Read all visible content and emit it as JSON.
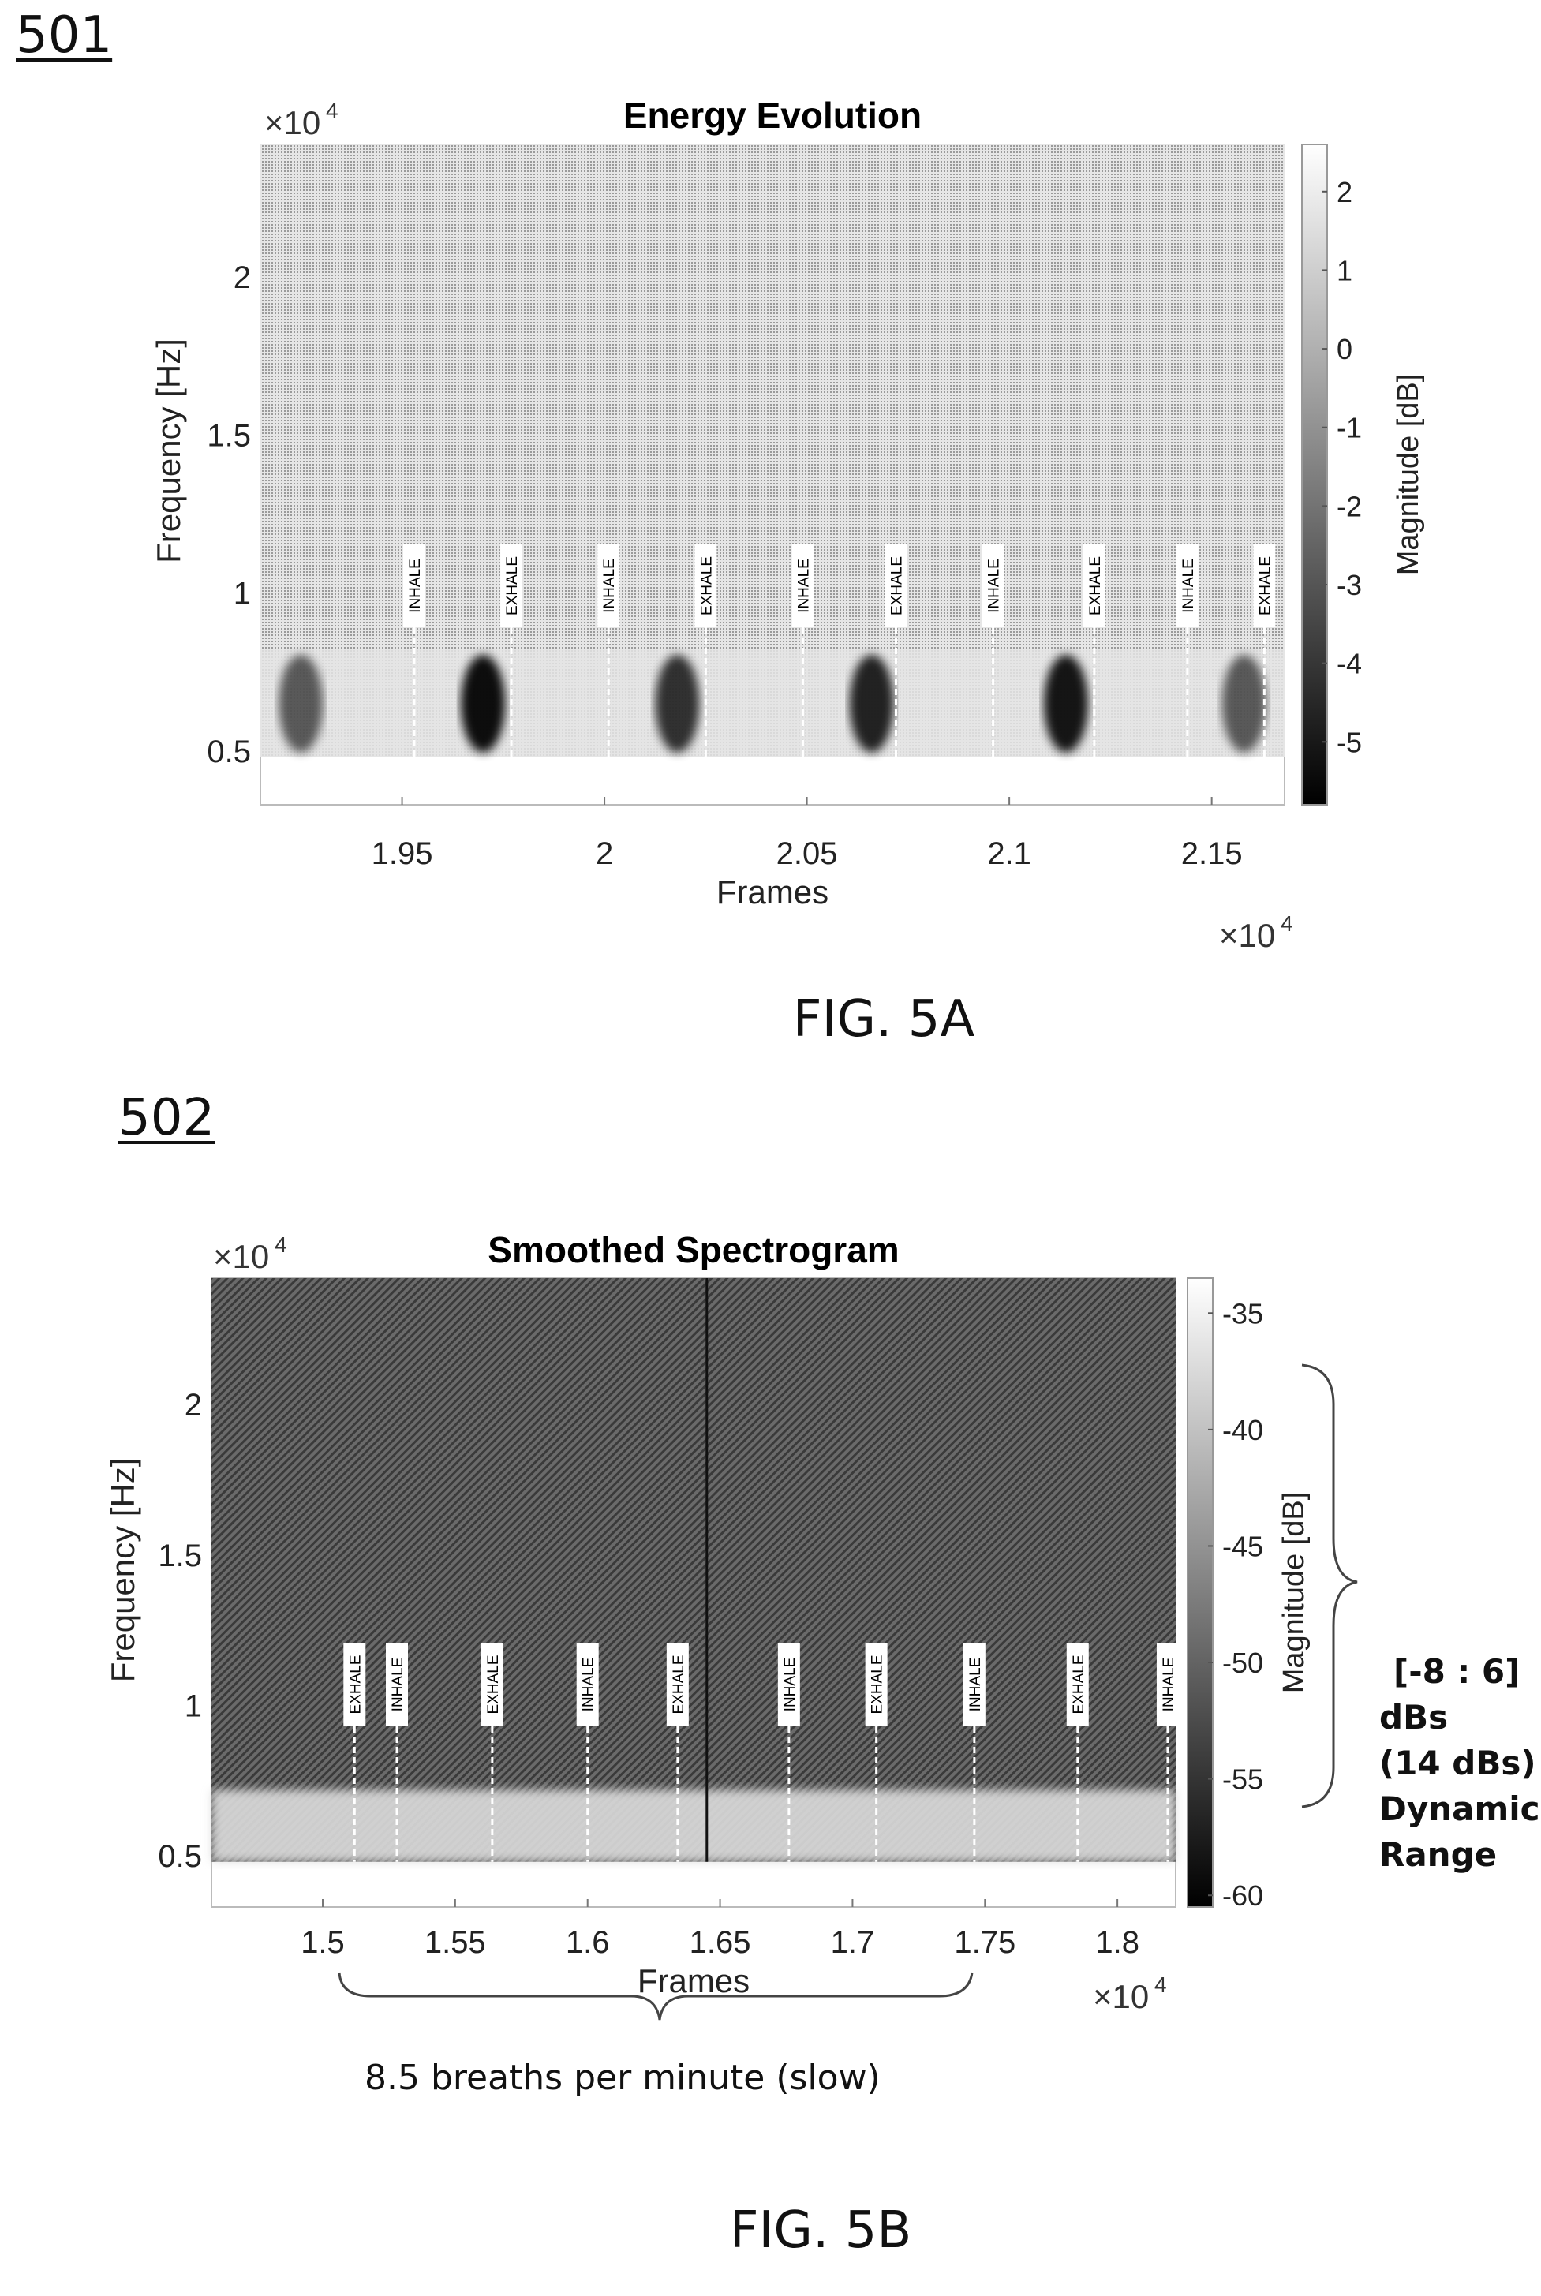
{
  "figure_5a": {
    "ref_number": "501",
    "caption": "FIG. 5A"
  },
  "figure_5b": {
    "ref_number": "502",
    "caption": "FIG. 5B",
    "breath_rate_note": "8.5 breaths per minute (slow)",
    "dynamic_range_note": [
      "[-8 : 6]",
      "dBs",
      "(14 dBs)",
      "Dynamic",
      "Range"
    ]
  },
  "chart_data": [
    {
      "type": "heatmap",
      "title": "Energy Evolution",
      "xlabel": "Frames",
      "ylabel": "Frequency [Hz]",
      "x_exponent_label": "×10",
      "x_exponent_power": "4",
      "y_exponent_label": "×10",
      "y_exponent_power": "4",
      "xlim": [
        1.915,
        2.168
      ],
      "ylim": [
        0.33,
        2.42
      ],
      "x_ticks": [
        1.95,
        2.0,
        2.05,
        2.1,
        2.15
      ],
      "x_tick_labels": [
        "1.95",
        "2",
        "2.05",
        "2.1",
        "2.15"
      ],
      "y_ticks": [
        0.5,
        1.0,
        1.5,
        2.0
      ],
      "y_tick_labels": [
        "0.5",
        "1",
        "1.5",
        "2"
      ],
      "colorbar": {
        "label": "Magnitude [dB]",
        "range": [
          -5.8,
          2.6
        ],
        "ticks": [
          2,
          1,
          0,
          -1,
          -2,
          -3,
          -4,
          -5
        ],
        "tick_labels": [
          "2",
          "1",
          "0",
          "-1",
          "-2",
          "-3",
          "-4",
          "-5"
        ]
      },
      "annotations": [
        {
          "text": "INHALE",
          "x": 1.953
        },
        {
          "text": "EXHALE",
          "x": 1.977
        },
        {
          "text": "INHALE",
          "x": 2.001
        },
        {
          "text": "EXHALE",
          "x": 2.025
        },
        {
          "text": "INHALE",
          "x": 2.049
        },
        {
          "text": "EXHALE",
          "x": 2.072
        },
        {
          "text": "INHALE",
          "x": 2.096
        },
        {
          "text": "EXHALE",
          "x": 2.121
        },
        {
          "text": "INHALE",
          "x": 2.144
        },
        {
          "text": "EXHALE",
          "x": 2.163
        }
      ],
      "energy_blobs": [
        {
          "x": 1.97,
          "y": 0.65,
          "db": -5.3
        },
        {
          "x": 2.018,
          "y": 0.65,
          "db": -4.0
        },
        {
          "x": 2.066,
          "y": 0.65,
          "db": -4.5
        },
        {
          "x": 2.114,
          "y": 0.65,
          "db": -5.0
        },
        {
          "x": 1.925,
          "y": 0.65,
          "db": -2.5
        },
        {
          "x": 2.158,
          "y": 0.65,
          "db": -2.5
        }
      ],
      "band_floor": 0.48,
      "background_db": -0.8
    },
    {
      "type": "heatmap",
      "title": "Smoothed Spectrogram",
      "xlabel": "Frames",
      "ylabel": "Frequency [Hz]",
      "x_exponent_label": "×10",
      "x_exponent_power": "4",
      "y_exponent_label": "×10",
      "y_exponent_power": "4",
      "xlim": [
        1.458,
        1.822
      ],
      "ylim": [
        0.33,
        2.42
      ],
      "x_ticks": [
        1.5,
        1.55,
        1.6,
        1.65,
        1.7,
        1.75,
        1.8
      ],
      "x_tick_labels": [
        "1.5",
        "1.55",
        "1.6",
        "1.65",
        "1.7",
        "1.75",
        "1.8"
      ],
      "y_ticks": [
        0.5,
        1.0,
        1.5,
        2.0
      ],
      "y_tick_labels": [
        "0.5",
        "1",
        "1.5",
        "2"
      ],
      "colorbar": {
        "label": "Magnitude [dB]",
        "range": [
          -60.5,
          -33.5
        ],
        "ticks": [
          -35,
          -40,
          -45,
          -50,
          -55,
          -60
        ],
        "tick_labels": [
          "-35",
          "-40",
          "-45",
          "-50",
          "-55",
          "-60"
        ]
      },
      "annotations": [
        {
          "text": "EXHALE",
          "x": 1.512
        },
        {
          "text": "INHALE",
          "x": 1.528
        },
        {
          "text": "EXHALE",
          "x": 1.564
        },
        {
          "text": "INHALE",
          "x": 1.6
        },
        {
          "text": "EXHALE",
          "x": 1.634
        },
        {
          "text": "INHALE",
          "x": 1.676
        },
        {
          "text": "EXHALE",
          "x": 1.709
        },
        {
          "text": "INHALE",
          "x": 1.746
        },
        {
          "text": "EXHALE",
          "x": 1.785
        },
        {
          "text": "INHALE",
          "x": 1.819
        }
      ],
      "vertical_marker_x": 1.645,
      "band_floor": 0.48,
      "background_db": -49
    }
  ]
}
